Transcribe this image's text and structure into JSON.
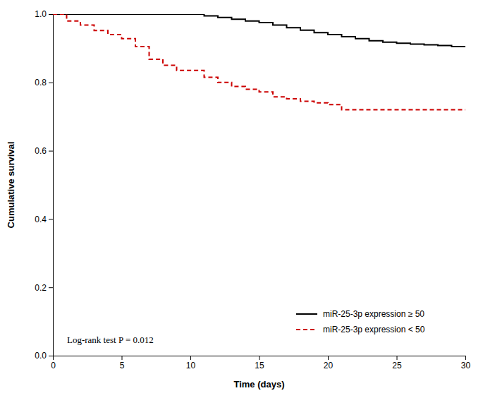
{
  "chart_data": {
    "type": "line",
    "xlabel": "Time (days)",
    "ylabel": "Cumulative survival",
    "annotation": "Log-rank test P = 0.012",
    "xlim": [
      0,
      30
    ],
    "ylim": [
      0.0,
      1.0
    ],
    "xticks": [
      0,
      5,
      10,
      15,
      20,
      25,
      30
    ],
    "yticks": [
      {
        "value": 0.0,
        "label": "0.0"
      },
      0.2,
      0.4,
      0.6,
      0.8,
      {
        "value": 1.0,
        "label": "1.0"
      }
    ],
    "grid": false,
    "legend": "lower right",
    "series": [
      {
        "name": "miR-25-3p expression ≥ 50",
        "color": "#000000",
        "line_style": "solid",
        "x": [
          0,
          0.5,
          0.5,
          1,
          1,
          2,
          2,
          3,
          3,
          4,
          4,
          5,
          5,
          6,
          6,
          7,
          7,
          8,
          8,
          9,
          9,
          10,
          10,
          11,
          11,
          12,
          12,
          13,
          13,
          14,
          14,
          15,
          15,
          16,
          16,
          17,
          17,
          18,
          18,
          19,
          19,
          20,
          20,
          21,
          21,
          22,
          22,
          23,
          23,
          24,
          24,
          25,
          25,
          26,
          26,
          27,
          27,
          28,
          28,
          29,
          29,
          30
        ],
        "values": [
          1.0,
          1.0,
          1.0,
          1.0,
          1.0,
          1.0,
          1.0,
          1.0,
          1.0,
          1.0,
          1.0,
          1.0,
          1.0,
          1.0,
          1.0,
          1.0,
          1.0,
          1.0,
          1.0,
          1.0,
          1.0,
          1.0,
          1.0,
          1.0,
          0.995,
          0.995,
          0.99,
          0.99,
          0.985,
          0.985,
          0.98,
          0.98,
          0.975,
          0.975,
          0.968,
          0.968,
          0.96,
          0.96,
          0.953,
          0.953,
          0.946,
          0.946,
          0.94,
          0.94,
          0.934,
          0.934,
          0.928,
          0.928,
          0.922,
          0.922,
          0.918,
          0.918,
          0.915,
          0.915,
          0.912,
          0.912,
          0.91,
          0.91,
          0.908,
          0.908,
          0.905,
          0.905
        ]
      },
      {
        "name": "miR-25-3p expression < 50",
        "color": "#cc0000",
        "line_style": "dashed",
        "x": [
          0,
          1,
          1,
          2,
          2,
          3,
          3,
          4,
          4,
          5,
          5,
          6,
          6,
          7,
          7,
          8,
          8,
          9,
          9,
          10,
          10,
          11,
          11,
          12,
          12,
          13,
          13,
          14,
          14,
          15,
          15,
          16,
          16,
          17,
          17,
          18,
          18,
          19,
          19,
          20,
          20,
          21,
          21,
          30
        ],
        "values": [
          1.0,
          1.0,
          0.98,
          0.98,
          0.968,
          0.968,
          0.952,
          0.952,
          0.94,
          0.94,
          0.928,
          0.928,
          0.905,
          0.905,
          0.868,
          0.868,
          0.85,
          0.85,
          0.835,
          0.835,
          0.835,
          0.835,
          0.815,
          0.815,
          0.8,
          0.8,
          0.788,
          0.788,
          0.78,
          0.78,
          0.772,
          0.772,
          0.758,
          0.758,
          0.752,
          0.752,
          0.745,
          0.745,
          0.74,
          0.74,
          0.735,
          0.735,
          0.72,
          0.72
        ]
      }
    ]
  }
}
